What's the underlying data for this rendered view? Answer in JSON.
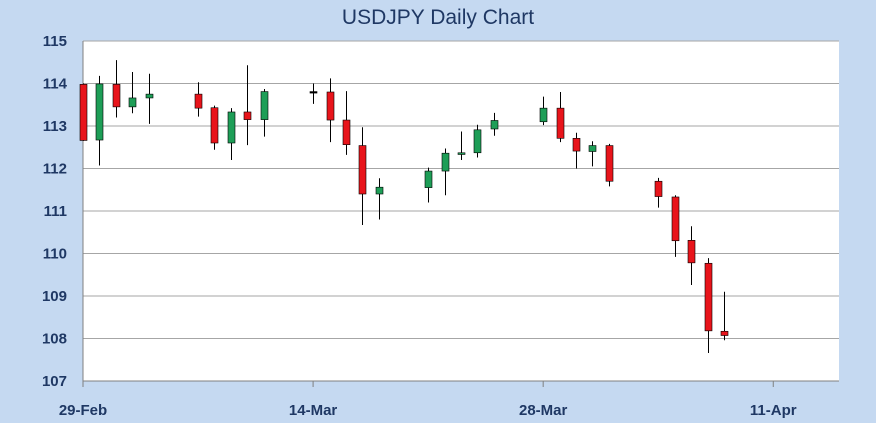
{
  "chart_data": {
    "type": "candlestick",
    "title": "USDJPY Daily Chart",
    "xlabel": "",
    "ylabel": "",
    "ylim": [
      107,
      115
    ],
    "yticks": [
      107,
      108,
      109,
      110,
      111,
      112,
      113,
      114,
      115
    ],
    "y_tick_labels": [
      "107",
      "108",
      "109",
      "110",
      "111",
      "112",
      "113",
      "114",
      "115"
    ],
    "x_tick_labels": [
      "29-Feb",
      "14-Mar",
      "28-Mar",
      "11-Apr"
    ],
    "x_tick_dates": [
      "2016-02-29",
      "2016-03-14",
      "2016-03-28",
      "2016-04-11"
    ],
    "xlim": [
      "2016-02-29",
      "2016-04-15"
    ],
    "grid": true,
    "colors": {
      "up": "#1e9e57",
      "down": "#e8141b",
      "neutral": "#000000",
      "background": "#ffffff",
      "frame": "#c5d9f1",
      "text": "#1f3864"
    },
    "series": [
      {
        "values": [
          {
            "date": "2016-02-29",
            "open": 113.98,
            "high": 114.0,
            "low": 112.65,
            "close": 112.66
          },
          {
            "date": "2016-03-01",
            "open": 112.67,
            "high": 114.18,
            "low": 112.07,
            "close": 113.99
          },
          {
            "date": "2016-03-02",
            "open": 113.98,
            "high": 114.55,
            "low": 113.2,
            "close": 113.45
          },
          {
            "date": "2016-03-03",
            "open": 113.45,
            "high": 114.27,
            "low": 113.3,
            "close": 113.66
          },
          {
            "date": "2016-03-04",
            "open": 113.66,
            "high": 114.23,
            "low": 113.05,
            "close": 113.75
          },
          {
            "date": "2016-03-07",
            "open": 113.75,
            "high": 114.03,
            "low": 113.22,
            "close": 113.42
          },
          {
            "date": "2016-03-08",
            "open": 113.43,
            "high": 113.48,
            "low": 112.44,
            "close": 112.6
          },
          {
            "date": "2016-03-09",
            "open": 112.6,
            "high": 113.42,
            "low": 112.2,
            "close": 113.33
          },
          {
            "date": "2016-03-10",
            "open": 113.33,
            "high": 114.43,
            "low": 112.55,
            "close": 113.15
          },
          {
            "date": "2016-03-11",
            "open": 113.15,
            "high": 113.87,
            "low": 112.75,
            "close": 113.81
          },
          {
            "date": "2016-03-14",
            "open": 113.81,
            "high": 114.0,
            "low": 113.52,
            "close": 113.81
          },
          {
            "date": "2016-03-15",
            "open": 113.8,
            "high": 114.12,
            "low": 112.62,
            "close": 113.14
          },
          {
            "date": "2016-03-16",
            "open": 113.14,
            "high": 113.82,
            "low": 112.32,
            "close": 112.56
          },
          {
            "date": "2016-03-17",
            "open": 112.54,
            "high": 112.97,
            "low": 110.67,
            "close": 111.4
          },
          {
            "date": "2016-03-18",
            "open": 111.4,
            "high": 111.77,
            "low": 110.8,
            "close": 111.56
          },
          {
            "date": "2016-03-21",
            "open": 111.55,
            "high": 112.02,
            "low": 111.2,
            "close": 111.94
          },
          {
            "date": "2016-03-22",
            "open": 111.94,
            "high": 112.47,
            "low": 111.37,
            "close": 112.36
          },
          {
            "date": "2016-03-23",
            "open": 112.33,
            "high": 112.87,
            "low": 112.2,
            "close": 112.37
          },
          {
            "date": "2016-03-24",
            "open": 112.37,
            "high": 113.03,
            "low": 112.26,
            "close": 112.91
          },
          {
            "date": "2016-03-25",
            "open": 112.93,
            "high": 113.31,
            "low": 112.77,
            "close": 113.13
          },
          {
            "date": "2016-03-28",
            "open": 113.1,
            "high": 113.69,
            "low": 113.02,
            "close": 113.42
          },
          {
            "date": "2016-03-29",
            "open": 113.42,
            "high": 113.8,
            "low": 112.62,
            "close": 112.71
          },
          {
            "date": "2016-03-30",
            "open": 112.71,
            "high": 112.84,
            "low": 112.0,
            "close": 112.41
          },
          {
            "date": "2016-03-31",
            "open": 112.4,
            "high": 112.64,
            "low": 112.05,
            "close": 112.54
          },
          {
            "date": "2016-04-01",
            "open": 112.54,
            "high": 112.58,
            "low": 111.58,
            "close": 111.7
          },
          {
            "date": "2016-04-04",
            "open": 111.7,
            "high": 111.78,
            "low": 111.08,
            "close": 111.34
          },
          {
            "date": "2016-04-05",
            "open": 111.33,
            "high": 111.37,
            "low": 109.92,
            "close": 110.3
          },
          {
            "date": "2016-04-06",
            "open": 110.31,
            "high": 110.64,
            "low": 109.26,
            "close": 109.78
          },
          {
            "date": "2016-04-07",
            "open": 109.77,
            "high": 109.89,
            "low": 107.66,
            "close": 108.18
          },
          {
            "date": "2016-04-08",
            "open": 108.17,
            "high": 109.1,
            "low": 107.96,
            "close": 108.07
          }
        ]
      }
    ]
  }
}
